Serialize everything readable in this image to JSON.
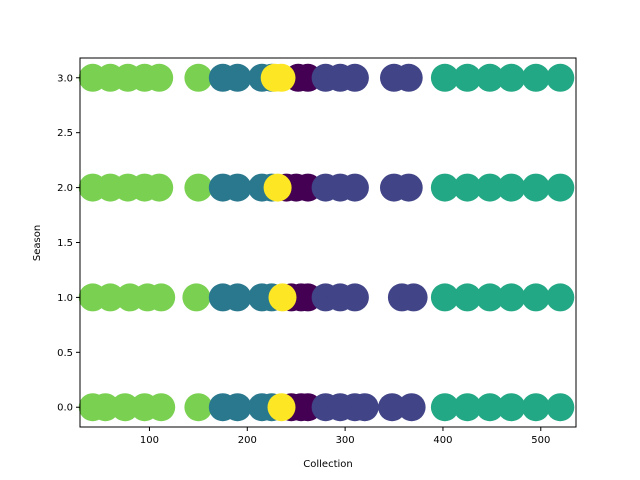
{
  "chart_data": {
    "type": "scatter",
    "title": "",
    "xlabel": "Collection",
    "ylabel": "Season",
    "xlim": [
      29,
      536
    ],
    "ylim": [
      -0.18,
      3.18
    ],
    "xticks": [
      100,
      200,
      300,
      400,
      500
    ],
    "yticks": [
      0.0,
      0.5,
      1.0,
      1.5,
      2.0,
      2.5,
      3.0
    ],
    "ytick_labels": [
      "0.0",
      "0.5",
      "1.0",
      "1.5",
      "2.0",
      "2.5",
      "3.0"
    ],
    "grid": false,
    "colormap": "viridis",
    "cluster_colors": {
      "light_green": "#7ad151",
      "blue": "#2a788e",
      "purple": "#440154",
      "yellow": "#fde725",
      "indigo": "#414487",
      "teal": "#22a884"
    },
    "series": [
      {
        "color_key": "light_green",
        "points": [
          [
            42,
            3
          ],
          [
            60,
            3
          ],
          [
            78,
            3
          ],
          [
            95,
            3
          ],
          [
            110,
            3
          ],
          [
            150,
            3
          ],
          [
            42,
            2
          ],
          [
            60,
            2
          ],
          [
            78,
            2
          ],
          [
            95,
            2
          ],
          [
            110,
            2
          ],
          [
            150,
            2
          ],
          [
            42,
            1
          ],
          [
            60,
            1
          ],
          [
            80,
            1
          ],
          [
            98,
            1
          ],
          [
            112,
            1
          ],
          [
            148,
            1
          ],
          [
            42,
            0
          ],
          [
            55,
            0
          ],
          [
            75,
            0
          ],
          [
            95,
            0
          ],
          [
            112,
            0
          ],
          [
            150,
            0
          ]
        ]
      },
      {
        "color_key": "blue",
        "points": [
          [
            175,
            3
          ],
          [
            190,
            3
          ],
          [
            215,
            3
          ],
          [
            225,
            3
          ],
          [
            175,
            2
          ],
          [
            190,
            2
          ],
          [
            215,
            2
          ],
          [
            225,
            2
          ],
          [
            175,
            1
          ],
          [
            190,
            1
          ],
          [
            215,
            1
          ],
          [
            225,
            1
          ],
          [
            175,
            0
          ],
          [
            190,
            0
          ],
          [
            215,
            0
          ],
          [
            225,
            0
          ]
        ]
      },
      {
        "color_key": "purple",
        "points": [
          [
            252,
            3
          ],
          [
            262,
            3
          ],
          [
            240,
            2
          ],
          [
            250,
            2
          ],
          [
            262,
            2
          ],
          [
            245,
            1
          ],
          [
            255,
            1
          ],
          [
            262,
            1
          ],
          [
            245,
            0
          ],
          [
            255,
            0
          ],
          [
            262,
            0
          ]
        ]
      },
      {
        "color_key": "yellow",
        "points": [
          [
            228,
            3
          ],
          [
            235,
            3
          ],
          [
            231,
            2
          ],
          [
            236,
            1
          ],
          [
            235,
            0
          ]
        ]
      },
      {
        "color_key": "indigo",
        "points": [
          [
            280,
            3
          ],
          [
            295,
            3
          ],
          [
            310,
            3
          ],
          [
            350,
            3
          ],
          [
            365,
            3
          ],
          [
            280,
            2
          ],
          [
            295,
            2
          ],
          [
            310,
            2
          ],
          [
            350,
            2
          ],
          [
            365,
            2
          ],
          [
            280,
            1
          ],
          [
            295,
            1
          ],
          [
            310,
            1
          ],
          [
            358,
            1
          ],
          [
            370,
            1
          ],
          [
            280,
            0
          ],
          [
            295,
            0
          ],
          [
            310,
            0
          ],
          [
            320,
            0
          ],
          [
            348,
            0
          ],
          [
            368,
            0
          ]
        ]
      },
      {
        "color_key": "teal",
        "points": [
          [
            402,
            3
          ],
          [
            425,
            3
          ],
          [
            448,
            3
          ],
          [
            470,
            3
          ],
          [
            495,
            3
          ],
          [
            520,
            3
          ],
          [
            402,
            2
          ],
          [
            425,
            2
          ],
          [
            448,
            2
          ],
          [
            470,
            2
          ],
          [
            495,
            2
          ],
          [
            520,
            2
          ],
          [
            402,
            1
          ],
          [
            425,
            1
          ],
          [
            448,
            1
          ],
          [
            470,
            1
          ],
          [
            495,
            1
          ],
          [
            520,
            1
          ],
          [
            402,
            0
          ],
          [
            425,
            0
          ],
          [
            448,
            0
          ],
          [
            470,
            0
          ],
          [
            495,
            0
          ],
          [
            520,
            0
          ]
        ]
      }
    ]
  }
}
